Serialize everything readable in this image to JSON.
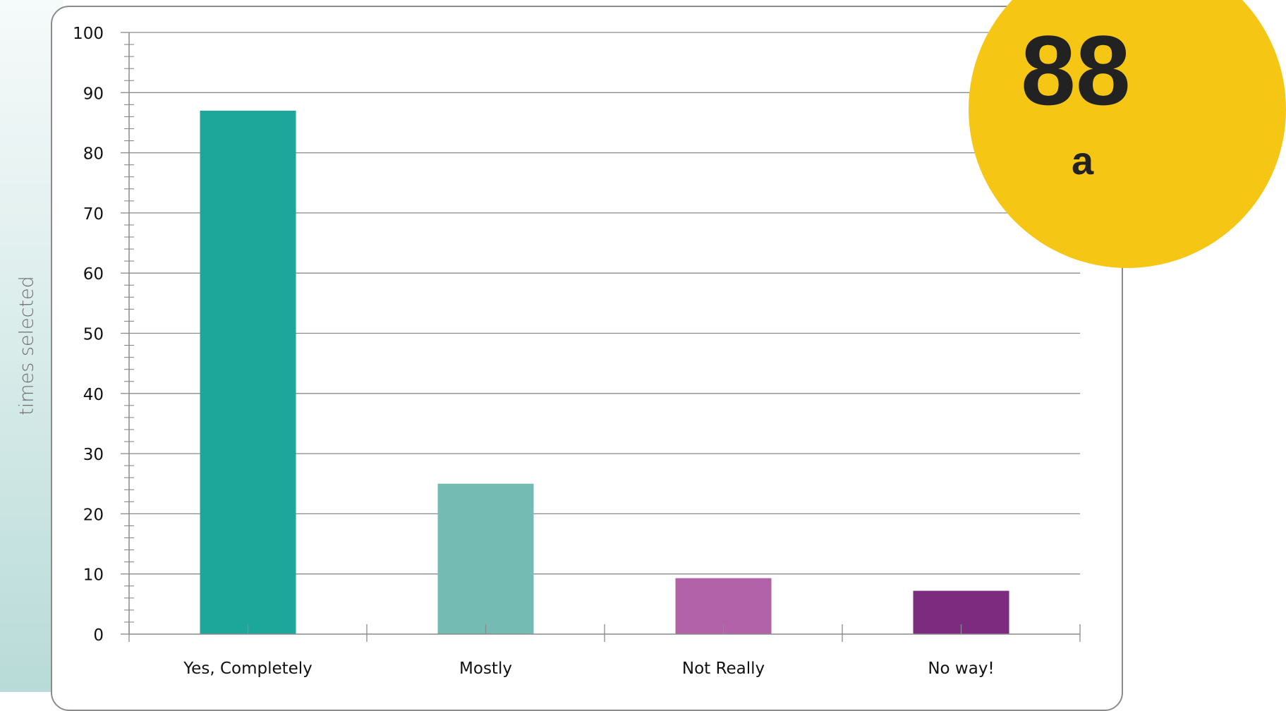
{
  "chart_data": {
    "type": "bar",
    "categories": [
      "Yes, Completely",
      "Mostly",
      "Not Really",
      "No way!"
    ],
    "values": [
      87,
      25,
      9.3,
      7.2
    ],
    "colors": [
      "#1da69a",
      "#74bbb4",
      "#b262a8",
      "#7d2b7f"
    ],
    "title": "",
    "xlabel": "",
    "ylabel": "times selected",
    "ylim": [
      0,
      100
    ],
    "yticks": [
      0,
      10,
      20,
      30,
      40,
      50,
      60,
      70,
      80,
      90,
      100
    ],
    "grid": true,
    "legend": "none"
  },
  "badge": {
    "main_text": "88",
    "sub_text": "a",
    "color": "#f5c614"
  }
}
